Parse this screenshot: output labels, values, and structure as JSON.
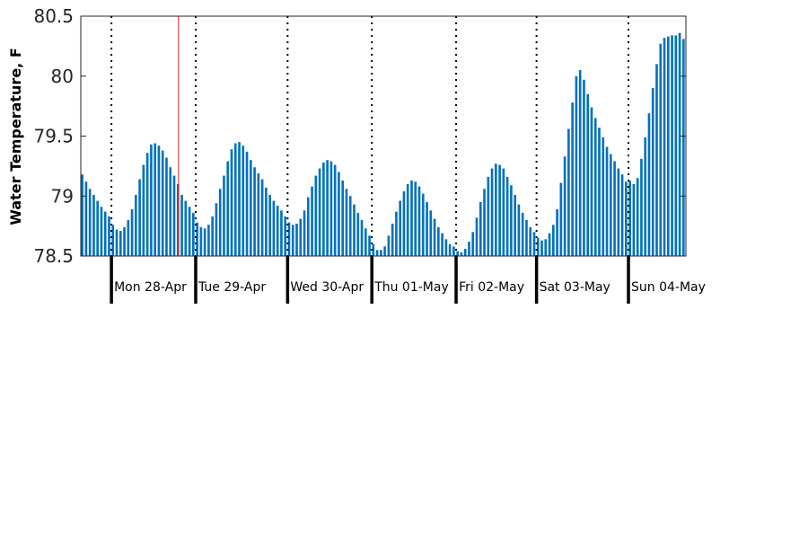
{
  "chart_data": {
    "type": "bar",
    "title": "",
    "xlabel": "",
    "ylabel": "Water Temperature, F",
    "ylim": [
      78.5,
      80.5
    ],
    "yticks": [
      "78.5",
      "79",
      "79.5",
      "80",
      "80.5"
    ],
    "grid": false,
    "bar_color": "#0072BD",
    "marker_color": "#e02020",
    "day_labels": [
      "Mon 28-Apr",
      "Tue 29-Apr",
      "Wed 30-Apr",
      "Thu 01-May",
      "Fri 02-May",
      "Sat 03-May",
      "Sun 04-May"
    ],
    "values": [
      79.18,
      79.12,
      79.06,
      79.01,
      78.96,
      78.91,
      78.87,
      78.83,
      78.76,
      78.72,
      78.71,
      78.74,
      78.8,
      78.89,
      79.01,
      79.14,
      79.26,
      79.36,
      79.43,
      79.44,
      79.42,
      79.38,
      79.32,
      79.24,
      79.17,
      79.1,
      79.01,
      78.96,
      78.91,
      78.86,
      78.78,
      78.74,
      78.73,
      78.76,
      78.83,
      78.94,
      79.06,
      79.17,
      79.29,
      79.39,
      79.44,
      79.45,
      79.42,
      79.37,
      79.3,
      79.24,
      79.19,
      79.14,
      79.07,
      79.01,
      78.96,
      78.92,
      78.88,
      78.83,
      78.78,
      78.76,
      78.77,
      78.81,
      78.88,
      78.99,
      79.08,
      79.17,
      79.23,
      79.28,
      79.3,
      79.29,
      79.26,
      79.2,
      79.13,
      79.06,
      79.0,
      78.93,
      78.86,
      78.8,
      78.73,
      78.67,
      78.6,
      78.55,
      78.55,
      78.58,
      78.67,
      78.77,
      78.87,
      78.96,
      79.04,
      79.1,
      79.13,
      79.12,
      79.08,
      79.02,
      78.95,
      78.88,
      78.81,
      78.74,
      78.69,
      78.64,
      78.6,
      78.58,
      78.54,
      78.53,
      78.56,
      78.62,
      78.7,
      78.82,
      78.95,
      79.06,
      79.16,
      79.23,
      79.27,
      79.26,
      79.23,
      79.16,
      79.09,
      79.01,
      78.93,
      78.86,
      78.8,
      78.74,
      78.7,
      78.65,
      78.63,
      78.64,
      78.69,
      78.76,
      78.89,
      79.11,
      79.33,
      79.56,
      79.78,
      80.0,
      80.05,
      79.97,
      79.85,
      79.74,
      79.65,
      79.57,
      79.49,
      79.41,
      79.35,
      79.29,
      79.23,
      79.18,
      79.12,
      79.13,
      79.1,
      79.15,
      79.31,
      79.49,
      79.69,
      79.9,
      80.1,
      80.27,
      80.32,
      80.33,
      80.34,
      80.34,
      80.36,
      80.31
    ],
    "day_start_index": [
      8,
      30,
      54,
      76,
      98,
      119,
      143
    ],
    "marker_index": 25
  }
}
